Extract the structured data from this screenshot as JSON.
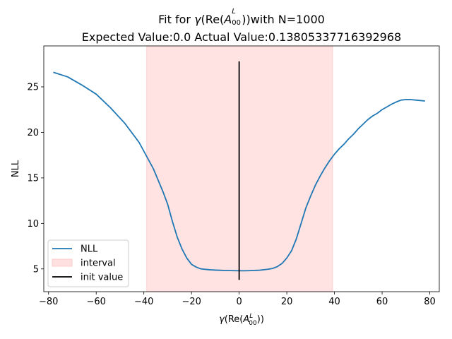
{
  "chart_data": {
    "type": "line",
    "title": {
      "line1_prefix": "Fit for ",
      "line1_suffix": "with N=1000",
      "line2": "Expected Value:0.0 Actual Value:0.13805337716392968"
    },
    "xlabel": "γ(Re(A₀₀ᴸ))",
    "ylabel": "NLL",
    "xlim": [
      -82,
      84
    ],
    "ylim": [
      2.5,
      29.5
    ],
    "xticks": [
      -80,
      -60,
      -40,
      -20,
      0,
      20,
      40,
      60,
      80
    ],
    "yticks": [
      5,
      10,
      15,
      20,
      25
    ],
    "grid": false,
    "legend_position": "lower-left",
    "series": [
      {
        "name": "NLL",
        "color": "#1f77b4",
        "x": [
          -78,
          -72,
          -66,
          -60,
          -54,
          -48,
          -42,
          -36,
          -32,
          -30,
          -28,
          -26,
          -24,
          -22,
          -20,
          -18,
          -16,
          -14,
          -12,
          -10,
          -8,
          -6,
          -4,
          -2,
          0,
          2,
          4,
          6,
          8,
          10,
          12,
          14,
          16,
          18,
          20,
          22,
          24,
          26,
          28,
          30,
          32,
          34,
          36,
          38,
          40,
          42,
          44,
          46,
          48,
          50,
          52,
          54,
          56,
          58,
          60,
          62,
          64,
          66,
          68,
          70,
          72,
          74,
          76,
          78
        ],
        "y": [
          26.6,
          26.1,
          25.2,
          24.2,
          22.7,
          21.0,
          18.9,
          16.0,
          13.5,
          12.1,
          10.2,
          8.5,
          7.2,
          6.2,
          5.5,
          5.2,
          5.0,
          4.95,
          4.9,
          4.87,
          4.85,
          4.83,
          4.82,
          4.81,
          4.8,
          4.8,
          4.81,
          4.83,
          4.85,
          4.9,
          4.96,
          5.05,
          5.25,
          5.6,
          6.2,
          7.0,
          8.3,
          10.0,
          11.7,
          13.0,
          14.2,
          15.2,
          16.1,
          16.9,
          17.6,
          18.2,
          18.7,
          19.3,
          19.8,
          20.4,
          20.9,
          21.4,
          21.8,
          22.1,
          22.5,
          22.8,
          23.1,
          23.35,
          23.55,
          23.6,
          23.6,
          23.55,
          23.5,
          23.45
        ]
      }
    ],
    "interval": {
      "name": "interval",
      "x": [
        -38.8,
        39.2
      ],
      "color": "#ffcccc"
    },
    "init_value": {
      "name": "init value",
      "x": 0,
      "y": [
        3.8,
        27.8
      ],
      "color": "#000000"
    }
  }
}
